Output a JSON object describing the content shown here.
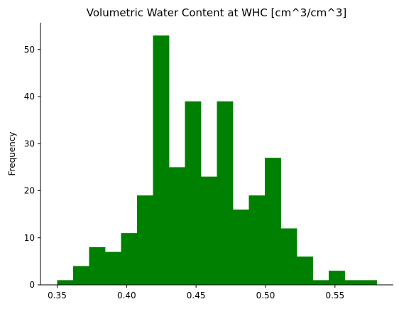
{
  "chart_data": {
    "type": "bar",
    "title": "Volumetric Water Content at WHC [cm^3/cm^3]",
    "xlabel": "",
    "ylabel": "Frequency",
    "xlim": [
      0.338,
      0.592
    ],
    "ylim": [
      0,
      55.7
    ],
    "grid": false,
    "bar_color": "#008000",
    "bins": [
      {
        "x0": 0.35,
        "x1": 0.3615,
        "count": 1
      },
      {
        "x0": 0.3615,
        "x1": 0.373,
        "count": 4
      },
      {
        "x0": 0.373,
        "x1": 0.3845,
        "count": 8
      },
      {
        "x0": 0.3845,
        "x1": 0.396,
        "count": 7
      },
      {
        "x0": 0.396,
        "x1": 0.4075,
        "count": 11
      },
      {
        "x0": 0.4075,
        "x1": 0.419,
        "count": 19
      },
      {
        "x0": 0.419,
        "x1": 0.4305,
        "count": 53
      },
      {
        "x0": 0.4305,
        "x1": 0.442,
        "count": 25
      },
      {
        "x0": 0.442,
        "x1": 0.4535,
        "count": 39
      },
      {
        "x0": 0.4535,
        "x1": 0.465,
        "count": 23
      },
      {
        "x0": 0.465,
        "x1": 0.4765,
        "count": 39
      },
      {
        "x0": 0.4765,
        "x1": 0.488,
        "count": 16
      },
      {
        "x0": 0.488,
        "x1": 0.4995,
        "count": 19
      },
      {
        "x0": 0.4995,
        "x1": 0.511,
        "count": 27
      },
      {
        "x0": 0.511,
        "x1": 0.5225,
        "count": 12
      },
      {
        "x0": 0.5225,
        "x1": 0.534,
        "count": 6
      },
      {
        "x0": 0.534,
        "x1": 0.5455,
        "count": 1
      },
      {
        "x0": 0.5455,
        "x1": 0.557,
        "count": 3
      },
      {
        "x0": 0.557,
        "x1": 0.5685,
        "count": 1
      },
      {
        "x0": 0.5685,
        "x1": 0.58,
        "count": 1
      }
    ],
    "xticks": [
      0.35,
      0.4,
      0.45,
      0.5,
      0.55
    ],
    "xtick_labels": [
      "0.35",
      "0.40",
      "0.45",
      "0.50",
      "0.55"
    ],
    "yticks": [
      0,
      10,
      20,
      30,
      40,
      50
    ],
    "ytick_labels": [
      "0",
      "10",
      "20",
      "30",
      "40",
      "50"
    ]
  }
}
